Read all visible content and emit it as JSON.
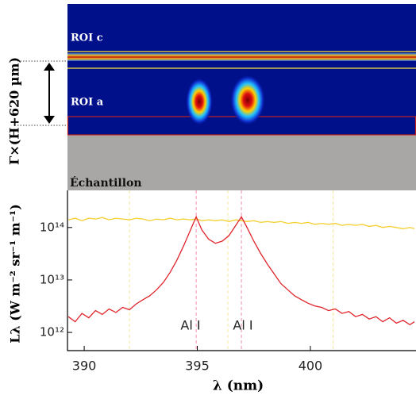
{
  "image_panel": {
    "roi_c": "ROI c",
    "roi_a": "ROI a",
    "height_label": "Γ×(H+620 µm)",
    "sample_label": "Échantillon"
  },
  "chart_data": {
    "type": "line",
    "x_label": "λ (nm)",
    "y_label": "Lλ (W m⁻² sr⁻¹ m⁻¹)",
    "xlim": [
      389.26,
      404.67
    ],
    "xticks": [
      390,
      395,
      400
    ],
    "ylim": [
      450000000000.0,
      510000000000000.0
    ],
    "log_y": true,
    "yticks": [
      {
        "value": 1000000000000.0,
        "label": "10¹²"
      },
      {
        "value": 10000000000000.0,
        "label": "10¹³"
      },
      {
        "value": 100000000000000.0,
        "label": "10¹⁴"
      }
    ],
    "annotations": [
      "Al I",
      "Al I"
    ],
    "vlines": [
      {
        "x": 394.95,
        "color": "#ef8fb5"
      },
      {
        "x": 396.95,
        "color": "#ef8fb5"
      },
      {
        "x": 392.0,
        "color": "#f3e79a"
      },
      {
        "x": 396.35,
        "color": "#f3e79a"
      },
      {
        "x": 401.0,
        "color": "#f3e79a"
      }
    ],
    "x": [
      389.3,
      389.6,
      389.9,
      390.2,
      390.5,
      390.8,
      391.1,
      391.4,
      391.7,
      392.0,
      392.3,
      392.6,
      392.9,
      393.2,
      393.5,
      393.8,
      394.1,
      394.4,
      394.7,
      394.95,
      395.2,
      395.5,
      395.8,
      396.1,
      396.4,
      396.7,
      396.95,
      397.2,
      397.5,
      397.8,
      398.1,
      398.4,
      398.7,
      399.0,
      399.3,
      399.6,
      399.9,
      400.2,
      400.5,
      400.8,
      401.1,
      401.4,
      401.7,
      402.0,
      402.3,
      402.6,
      402.9,
      403.2,
      403.5,
      403.8,
      404.1,
      404.4,
      404.6
    ],
    "series": [
      {
        "color": "#f5cf2e",
        "values": [
          140000000000000.0,
          150000000000000.0,
          135000000000000.0,
          150000000000000.0,
          145000000000000.0,
          155000000000000.0,
          140000000000000.0,
          150000000000000.0,
          145000000000000.0,
          140000000000000.0,
          150000000000000.0,
          145000000000000.0,
          135000000000000.0,
          145000000000000.0,
          140000000000000.0,
          150000000000000.0,
          140000000000000.0,
          145000000000000.0,
          140000000000000.0,
          145000000000000.0,
          135000000000000.0,
          140000000000000.0,
          135000000000000.0,
          140000000000000.0,
          130000000000000.0,
          140000000000000.0,
          135000000000000.0,
          130000000000000.0,
          135000000000000.0,
          125000000000000.0,
          130000000000000.0,
          125000000000000.0,
          130000000000000.0,
          120000000000000.0,
          125000000000000.0,
          120000000000000.0,
          125000000000000.0,
          115000000000000.0,
          120000000000000.0,
          115000000000000.0,
          120000000000000.0,
          110000000000000.0,
          115000000000000.0,
          110000000000000.0,
          115000000000000.0,
          105000000000000.0,
          110000000000000.0,
          100000000000000.0,
          105000000000000.0,
          100000000000000.0,
          95000000000000.0,
          100000000000000.0,
          95000000000000.0
        ]
      },
      {
        "color": "#e0242b",
        "values": [
          2000000000000.0,
          1600000000000.0,
          2300000000000.0,
          1900000000000.0,
          2600000000000.0,
          2200000000000.0,
          2800000000000.0,
          2400000000000.0,
          3000000000000.0,
          2700000000000.0,
          3500000000000.0,
          4200000000000.0,
          5000000000000.0,
          6500000000000.0,
          9000000000000.0,
          14000000000000.0,
          24000000000000.0,
          45000000000000.0,
          90000000000000.0,
          160000000000000.0,
          90000000000000.0,
          60000000000000.0,
          50000000000000.0,
          55000000000000.0,
          70000000000000.0,
          110000000000000.0,
          160000000000000.0,
          100000000000000.0,
          55000000000000.0,
          32000000000000.0,
          20000000000000.0,
          13000000000000.0,
          8500000000000.0,
          6500000000000.0,
          5000000000000.0,
          4200000000000.0,
          3600000000000.0,
          3200000000000.0,
          3000000000000.0,
          2600000000000.0,
          2800000000000.0,
          2300000000000.0,
          2500000000000.0,
          2000000000000.0,
          2200000000000.0,
          1800000000000.0,
          2000000000000.0,
          1600000000000.0,
          1900000000000.0,
          1500000000000.0,
          1700000000000.0,
          1400000000000.0,
          1600000000000.0
        ]
      }
    ]
  }
}
